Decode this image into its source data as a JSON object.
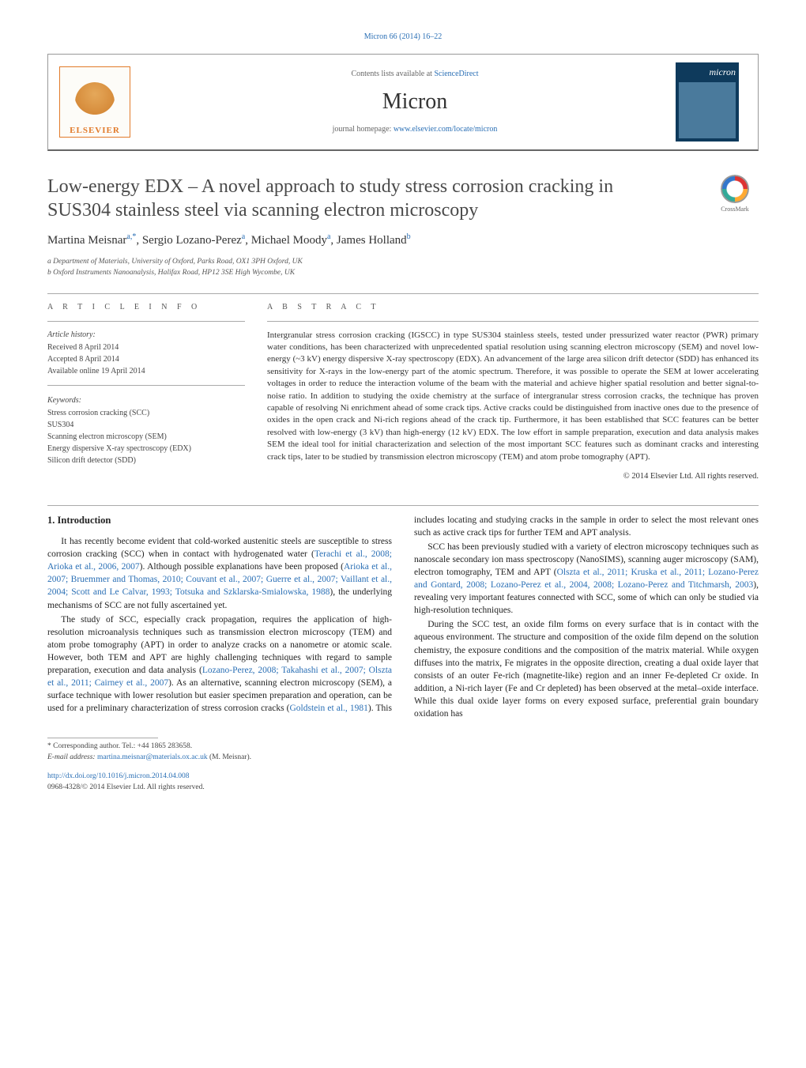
{
  "top_citation": "Micron 66 (2014) 16–22",
  "header": {
    "contents_prefix": "Contents lists available at ",
    "contents_link": "ScienceDirect",
    "journal": "Micron",
    "homepage_prefix": "journal homepage: ",
    "homepage_url": "www.elsevier.com/locate/micron",
    "publisher_logo_label": "ELSEVIER",
    "cover_title": "micron"
  },
  "crossmark_label": "CrossMark",
  "title": "Low-energy EDX – A novel approach to study stress corrosion cracking in SUS304 stainless steel via scanning electron microscopy",
  "authors_html": "Martina Meisnar<sup>a,*</sup>, Sergio Lozano-Perez<sup>a</sup>, Michael Moody<sup>a</sup>, James Holland<sup>b</sup>",
  "affiliations": [
    "a Department of Materials, University of Oxford, Parks Road, OX1 3PH Oxford, UK",
    "b Oxford Instruments Nanoanalysis, Halifax Road, HP12 3SE High Wycombe, UK"
  ],
  "labels": {
    "article_info": "a r t i c l e   i n f o",
    "abstract": "a b s t r a c t",
    "history": "Article history:",
    "keywords": "Keywords:"
  },
  "history": [
    "Received 8 April 2014",
    "Accepted 8 April 2014",
    "Available online 19 April 2014"
  ],
  "keywords": [
    "Stress corrosion cracking (SCC)",
    "SUS304",
    "Scanning electron microscopy (SEM)",
    "Energy dispersive X-ray spectroscopy (EDX)",
    "Silicon drift detector (SDD)"
  ],
  "abstract": "Intergranular stress corrosion cracking (IGSCC) in type SUS304 stainless steels, tested under pressurized water reactor (PWR) primary water conditions, has been characterized with unprecedented spatial resolution using scanning electron microscopy (SEM) and novel low-energy (~3 kV) energy dispersive X-ray spectroscopy (EDX). An advancement of the large area silicon drift detector (SDD) has enhanced its sensitivity for X-rays in the low-energy part of the atomic spectrum. Therefore, it was possible to operate the SEM at lower accelerating voltages in order to reduce the interaction volume of the beam with the material and achieve higher spatial resolution and better signal-to-noise ratio. In addition to studying the oxide chemistry at the surface of intergranular stress corrosion cracks, the technique has proven capable of resolving Ni enrichment ahead of some crack tips. Active cracks could be distinguished from inactive ones due to the presence of oxides in the open crack and Ni-rich regions ahead of the crack tip. Furthermore, it has been established that SCC features can be better resolved with low-energy (3 kV) than high-energy (12 kV) EDX. The low effort in sample preparation, execution and data analysis makes SEM the ideal tool for initial characterization and selection of the most important SCC features such as dominant cracks and interesting crack tips, later to be studied by transmission electron microscopy (TEM) and atom probe tomography (APT).",
  "copyright": "© 2014 Elsevier Ltd. All rights reserved.",
  "section_heading": "1. Introduction",
  "body": {
    "p1a": "It has recently become evident that cold-worked austenitic steels are susceptible to stress corrosion cracking (SCC) when in contact with hydrogenated water (",
    "p1_link1": "Terachi et al., 2008; Arioka et al., 2006, 2007",
    "p1b": "). Although possible explanations have been proposed (",
    "p1_link2": "Arioka et al., 2007; Bruemmer and Thomas, 2010; Couvant et al., 2007; Guerre et al., 2007; Vaillant et al., 2004; Scott and Le Calvar, 1993; Totsuka and Szklarska-Smialowska, 1988",
    "p1c": "), the underlying mechanisms of SCC are not fully ascertained yet.",
    "p2a": "The study of SCC, especially crack propagation, requires the application of high-resolution microanalysis techniques such as transmission electron microscopy (TEM) and atom probe tomography (APT) in order to analyze cracks on a nanometre or atomic scale. However, both TEM and APT are highly challenging techniques with regard to sample preparation, execution and data analysis (",
    "p2_link1": "Lozano-Perez, 2008; Takahashi et al., 2007; Olszta et al., 2011; Cairney et al., 2007",
    "p2b": "). As an alternative, scanning electron microscopy (SEM), a surface technique with lower resolution but easier specimen preparation and operation, can be used for a preliminary characterization of stress corrosion cracks (",
    "p2_link2": "Goldstein et al., 1981",
    "p2c": "). This includes locating and studying cracks in the sample in order to select the most relevant ones such as active crack tips for further TEM and APT analysis.",
    "p3a": "SCC has been previously studied with a variety of electron microscopy techniques such as nanoscale secondary ion mass spectroscopy (NanoSIMS), scanning auger microscopy (SAM), electron tomography, TEM and APT (",
    "p3_link1": "Olszta et al., 2011; Kruska et al., 2011; Lozano-Perez and Gontard, 2008; Lozano-Perez et al., 2004, 2008; Lozano-Perez and Titchmarsh, 2003",
    "p3b": "), revealing very important features connected with SCC, some of which can only be studied via high-resolution techniques.",
    "p4": "During the SCC test, an oxide film forms on every surface that is in contact with the aqueous environment. The structure and composition of the oxide film depend on the solution chemistry, the exposure conditions and the composition of the matrix material. While oxygen diffuses into the matrix, Fe migrates in the opposite direction, creating a dual oxide layer that consists of an outer Fe-rich (magnetite-like) region and an inner Fe-depleted Cr oxide. In addition, a Ni-rich layer (Fe and Cr depleted) has been observed at the metal–oxide interface. While this dual oxide layer forms on every exposed surface, preferential grain boundary oxidation has"
  },
  "footer": {
    "corresponding": "* Corresponding author. Tel.: +44 1865 283658.",
    "email_label": "E-mail address: ",
    "email": "martina.meisnar@materials.ox.ac.uk",
    "email_suffix": " (M. Meisnar).",
    "doi": "http://dx.doi.org/10.1016/j.micron.2014.04.008",
    "issn": "0968-4328/© 2014 Elsevier Ltd. All rights reserved."
  },
  "colors": {
    "link": "#2a6fb5",
    "elsevier_orange": "#e27b2b",
    "cover_bg": "#0e3a5c",
    "border": "#999999"
  }
}
